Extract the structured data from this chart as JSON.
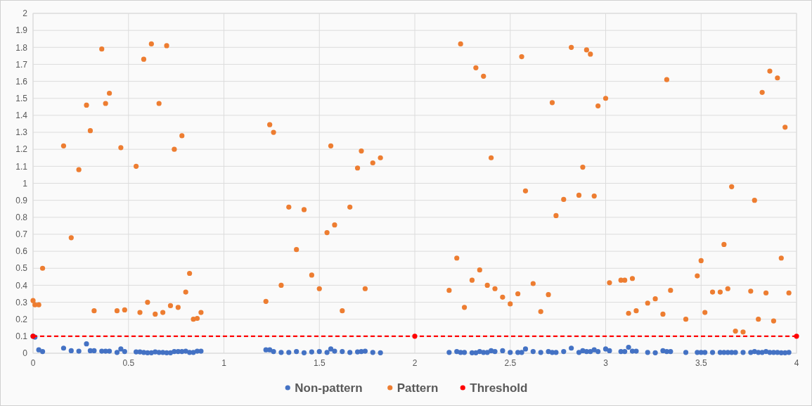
{
  "chart_data": {
    "type": "scatter",
    "xlim": [
      0,
      4
    ],
    "xticks": [
      0,
      0.5,
      1,
      1.5,
      2,
      2.5,
      3,
      3.5,
      4
    ],
    "ylim": [
      0,
      2
    ],
    "yticks": [
      0,
      0.1,
      0.2,
      0.3,
      0.4,
      0.5,
      0.6,
      0.7,
      0.8,
      0.9,
      1,
      1.1,
      1.2,
      1.3,
      1.4,
      1.5,
      1.6,
      1.7,
      1.8,
      1.9,
      2
    ],
    "grid": true,
    "legend": "bottom",
    "marker": "circle",
    "series": [
      {
        "name": "Non-pattern",
        "color": "#4472c4",
        "x": [
          0,
          0.01,
          0.03,
          0.05,
          0.16,
          0.2,
          0.24,
          0.28,
          0.3,
          0.32,
          0.36,
          0.38,
          0.4,
          0.44,
          0.46,
          0.48,
          0.54,
          0.56,
          0.58,
          0.6,
          0.62,
          0.64,
          0.66,
          0.68,
          0.7,
          0.72,
          0.74,
          0.76,
          0.78,
          0.8,
          0.82,
          0.84,
          0.86,
          0.88,
          1.22,
          1.24,
          1.26,
          1.3,
          1.34,
          1.38,
          1.42,
          1.46,
          1.5,
          1.54,
          1.56,
          1.58,
          1.62,
          1.66,
          1.7,
          1.72,
          1.74,
          1.78,
          1.82,
          2.18,
          2.22,
          2.24,
          2.26,
          2.3,
          2.32,
          2.34,
          2.36,
          2.38,
          2.4,
          2.42,
          2.46,
          2.5,
          2.54,
          2.56,
          2.58,
          2.62,
          2.66,
          2.7,
          2.72,
          2.74,
          2.78,
          2.82,
          2.86,
          2.88,
          2.9,
          2.92,
          2.94,
          2.96,
          3,
          3.02,
          3.08,
          3.1,
          3.12,
          3.14,
          3.16,
          3.22,
          3.26,
          3.3,
          3.32,
          3.34,
          3.42,
          3.48,
          3.5,
          3.52,
          3.56,
          3.6,
          3.62,
          3.64,
          3.66,
          3.68,
          3.72,
          3.76,
          3.78,
          3.8,
          3.82,
          3.84,
          3.86,
          3.88,
          3.9,
          3.92,
          3.94,
          3.96
        ],
        "values": [
          0.1,
          0.095,
          0.02,
          0.01,
          0.03,
          0.015,
          0.012,
          0.055,
          0.015,
          0.015,
          0.012,
          0.012,
          0.012,
          0.005,
          0.025,
          0.01,
          0.008,
          0.008,
          0.005,
          0.003,
          0.003,
          0.008,
          0.005,
          0.005,
          0.003,
          0.003,
          0.01,
          0.01,
          0.01,
          0.012,
          0.005,
          0.005,
          0.012,
          0.012,
          0.02,
          0.02,
          0.01,
          0.005,
          0.005,
          0.01,
          0.003,
          0.008,
          0.01,
          0.005,
          0.025,
          0.012,
          0.01,
          0.005,
          0.008,
          0.01,
          0.012,
          0.005,
          0.003,
          0.005,
          0.01,
          0.005,
          0.005,
          0.003,
          0.003,
          0.01,
          0.005,
          0.005,
          0.015,
          0.01,
          0.015,
          0.005,
          0.005,
          0.005,
          0.025,
          0.01,
          0.005,
          0.01,
          0.005,
          0.005,
          0.01,
          0.03,
          0.005,
          0.015,
          0.01,
          0.01,
          0.02,
          0.01,
          0.025,
          0.015,
          0.01,
          0.01,
          0.035,
          0.012,
          0.012,
          0.005,
          0.003,
          0.015,
          0.01,
          0.01,
          0.005,
          0.005,
          0.005,
          0.005,
          0.005,
          0.005,
          0.005,
          0.005,
          0.005,
          0.005,
          0.005,
          0.005,
          0.01,
          0.005,
          0.005,
          0.01,
          0.005,
          0.005,
          0.005,
          0.003,
          0.003,
          0.005
        ]
      },
      {
        "name": "Pattern",
        "color": "#ed7d31",
        "x": [
          0,
          0.01,
          0.03,
          0.05,
          0.16,
          0.2,
          0.24,
          0.28,
          0.3,
          0.32,
          0.36,
          0.38,
          0.4,
          0.44,
          0.46,
          0.48,
          0.54,
          0.56,
          0.58,
          0.6,
          0.62,
          0.64,
          0.66,
          0.68,
          0.7,
          0.72,
          0.74,
          0.76,
          0.78,
          0.8,
          0.82,
          0.84,
          0.86,
          0.88,
          1.22,
          1.24,
          1.26,
          1.3,
          1.34,
          1.38,
          1.42,
          1.46,
          1.5,
          1.54,
          1.56,
          1.58,
          1.62,
          1.66,
          1.7,
          1.72,
          1.74,
          1.78,
          1.82,
          2.18,
          2.22,
          2.24,
          2.26,
          2.3,
          2.32,
          2.34,
          2.36,
          2.38,
          2.4,
          2.42,
          2.46,
          2.5,
          2.54,
          2.56,
          2.58,
          2.62,
          2.66,
          2.7,
          2.72,
          2.74,
          2.78,
          2.82,
          2.86,
          2.88,
          2.9,
          2.92,
          2.94,
          2.96,
          3,
          3.02,
          3.08,
          3.1,
          3.12,
          3.14,
          3.16,
          3.22,
          3.26,
          3.3,
          3.32,
          3.34,
          3.42,
          3.48,
          3.5,
          3.52,
          3.56,
          3.6,
          3.62,
          3.64,
          3.66,
          3.68,
          3.72,
          3.76,
          3.78,
          3.8,
          3.82,
          3.84,
          3.86,
          3.88,
          3.9,
          3.92,
          3.94,
          3.96
        ],
        "values": [
          0.31,
          0.285,
          0.285,
          0.5,
          1.22,
          0.68,
          1.08,
          1.46,
          1.31,
          0.25,
          1.79,
          1.47,
          1.53,
          0.25,
          1.21,
          0.255,
          1.1,
          0.24,
          1.73,
          0.3,
          1.82,
          0.23,
          1.47,
          0.24,
          1.81,
          0.28,
          1.2,
          0.27,
          1.28,
          0.36,
          0.47,
          0.2,
          0.205,
          0.24,
          0.305,
          1.345,
          1.3,
          0.4,
          0.86,
          0.61,
          0.845,
          0.46,
          0.38,
          0.71,
          1.22,
          0.755,
          0.25,
          0.86,
          1.09,
          1.19,
          0.38,
          1.12,
          1.15,
          0.37,
          0.56,
          1.82,
          0.27,
          0.43,
          1.68,
          0.49,
          1.63,
          0.4,
          1.15,
          0.38,
          0.33,
          0.29,
          0.35,
          1.745,
          0.955,
          0.41,
          0.245,
          0.345,
          1.475,
          0.81,
          0.905,
          1.8,
          0.93,
          1.095,
          1.785,
          1.76,
          0.925,
          1.455,
          1.5,
          0.415,
          0.43,
          0.43,
          0.235,
          0.44,
          0.25,
          0.295,
          0.32,
          0.23,
          1.61,
          0.37,
          0.2,
          0.455,
          0.545,
          0.24,
          0.36,
          0.36,
          0.64,
          0.38,
          0.98,
          0.13,
          0.125,
          0.365,
          0.9,
          0.2,
          1.535,
          0.355,
          1.66,
          0.19,
          1.62,
          0.56,
          1.33,
          0.355
        ]
      },
      {
        "name": "Threshold",
        "color": "#ff0000",
        "type": "line",
        "line_style": "dashed",
        "x": [
          0,
          2,
          4
        ],
        "values": [
          0.1,
          0.1,
          0.1
        ]
      }
    ]
  }
}
